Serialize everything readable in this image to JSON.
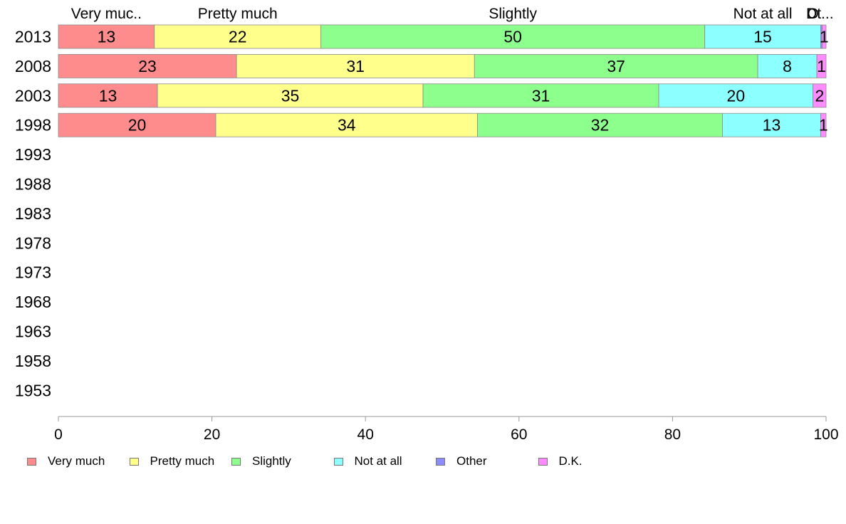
{
  "chart_data": {
    "type": "bar",
    "orientation": "horizontal",
    "stacked": true,
    "categories": [
      "2013",
      "2008",
      "2003",
      "1998",
      "1993",
      "1988",
      "1983",
      "1978",
      "1973",
      "1968",
      "1963",
      "1958",
      "1953"
    ],
    "series": [
      {
        "name": "Very much",
        "color": "#ff8c8c",
        "values": [
          12.5,
          23.2,
          12.9,
          20.5,
          null,
          null,
          null,
          null,
          null,
          null,
          null,
          null,
          null
        ],
        "labels": [
          "13",
          "23",
          "13",
          "20",
          "",
          "",
          "",
          "",
          "",
          "",
          "",
          "",
          ""
        ]
      },
      {
        "name": "Pretty much",
        "color": "#ffff8c",
        "values": [
          21.7,
          31.0,
          34.6,
          34.1,
          null,
          null,
          null,
          null,
          null,
          null,
          null,
          null,
          null
        ],
        "labels": [
          "22",
          "31",
          "35",
          "34",
          "",
          "",
          "",
          "",
          "",
          "",
          "",
          "",
          ""
        ]
      },
      {
        "name": "Slightly",
        "color": "#8cff8c",
        "values": [
          50.0,
          36.9,
          30.7,
          31.9,
          null,
          null,
          null,
          null,
          null,
          null,
          null,
          null,
          null
        ],
        "labels": [
          "50",
          "37",
          "31",
          "32",
          "",
          "",
          "",
          "",
          "",
          "",
          "",
          "",
          ""
        ]
      },
      {
        "name": "Not at all",
        "color": "#8cffff",
        "values": [
          15.1,
          7.7,
          20.1,
          12.8,
          null,
          null,
          null,
          null,
          null,
          null,
          null,
          null,
          null
        ],
        "labels": [
          "15",
          "8",
          "20",
          "13",
          "",
          "",
          "",
          "",
          "",
          "",
          "",
          "",
          ""
        ]
      },
      {
        "name": "Other",
        "color": "#8c8cff",
        "values": [
          0.2,
          0.0,
          0.0,
          0.0,
          null,
          null,
          null,
          null,
          null,
          null,
          null,
          null,
          null
        ],
        "labels": [
          "",
          "",
          "",
          "",
          "",
          "",
          "",
          "",
          "",
          "",
          "",
          "",
          ""
        ]
      },
      {
        "name": "D.K.",
        "color": "#ff8cff",
        "values": [
          0.5,
          1.2,
          1.7,
          0.7,
          null,
          null,
          null,
          null,
          null,
          null,
          null,
          null,
          null
        ],
        "labels": [
          "1",
          "1",
          "2",
          "1",
          "",
          "",
          "",
          "",
          "",
          "",
          "",
          "",
          ""
        ]
      }
    ],
    "top_labels": [
      "Very muc..",
      "Pretty much",
      "Slightly",
      "Not at all",
      "O",
      "Dt..."
    ],
    "xlim": [
      0,
      100
    ],
    "xticks": [
      "0",
      "20",
      "40",
      "60",
      "80",
      "100"
    ],
    "xlabel": "",
    "ylabel": "",
    "grid": false,
    "legend": "bottom"
  }
}
